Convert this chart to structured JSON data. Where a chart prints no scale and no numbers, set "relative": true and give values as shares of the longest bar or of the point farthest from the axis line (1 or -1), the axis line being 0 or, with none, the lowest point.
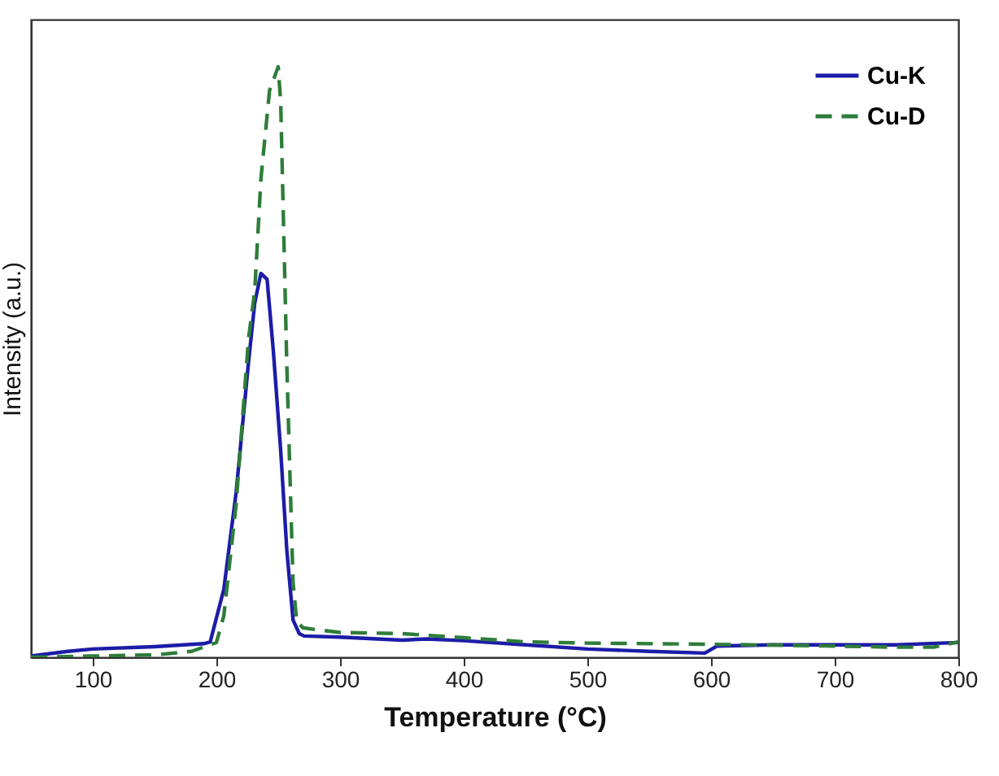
{
  "chart_data": {
    "type": "line",
    "xlabel": "Temperature (°C)",
    "ylabel": "Intensity (a.u.)",
    "relative": true,
    "xlim": [
      50,
      800
    ],
    "xticks": [
      100,
      200,
      300,
      400,
      500,
      600,
      700,
      800
    ],
    "grid": false,
    "legend": "top right",
    "marker": "none",
    "series": [
      {
        "name": "Cu-K",
        "color": "#1c1ca8",
        "line_style": "solid",
        "x": [
          50,
          80,
          100,
          150,
          190,
          195,
          206,
          216,
          226,
          231,
          236,
          241,
          246,
          252,
          257,
          262,
          267,
          271,
          300,
          350,
          370,
          400,
          450,
          500,
          550,
          595,
          605,
          650,
          700,
          750,
          800
        ],
        "values": [
          0.002,
          0.01,
          0.014,
          0.018,
          0.023,
          0.026,
          0.115,
          0.28,
          0.5,
          0.6,
          0.65,
          0.64,
          0.52,
          0.35,
          0.18,
          0.063,
          0.04,
          0.036,
          0.034,
          0.029,
          0.031,
          0.028,
          0.021,
          0.014,
          0.01,
          0.007,
          0.019,
          0.021,
          0.021,
          0.021,
          0.025
        ]
      },
      {
        "name": "Cu-D",
        "color": "#2e7d3a",
        "line_style": "dashed",
        "x": [
          50,
          100,
          150,
          180,
          200,
          206,
          216,
          226,
          231,
          236,
          243,
          250,
          252,
          257,
          262,
          265,
          270,
          280,
          300,
          350,
          400,
          450,
          500,
          600,
          700,
          750,
          780,
          800
        ],
        "values": [
          0,
          0.002,
          0.004,
          0.01,
          0.025,
          0.07,
          0.26,
          0.54,
          0.62,
          0.81,
          0.96,
          1.0,
          0.94,
          0.49,
          0.126,
          0.06,
          0.05,
          0.047,
          0.042,
          0.04,
          0.033,
          0.026,
          0.024,
          0.022,
          0.019,
          0.017,
          0.017,
          0.026
        ]
      }
    ]
  }
}
